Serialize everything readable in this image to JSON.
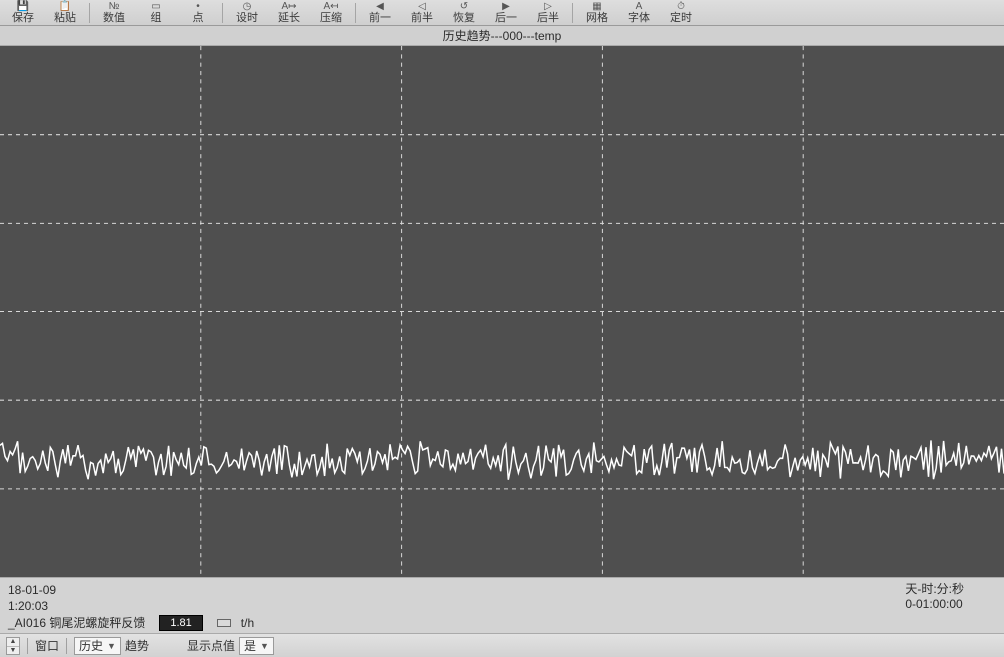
{
  "toolbar": [
    {
      "name": "save-button",
      "label": "保存",
      "glyph": "💾"
    },
    {
      "name": "paste-button",
      "label": "粘贴",
      "glyph": "📋"
    },
    {
      "name": "value-button",
      "label": "数值",
      "glyph": "№"
    },
    {
      "name": "group-button",
      "label": "组",
      "glyph": "▭"
    },
    {
      "name": "point-button",
      "label": "点",
      "glyph": "•"
    },
    {
      "name": "set-time-button",
      "label": "设时",
      "glyph": "◷"
    },
    {
      "name": "extend-button",
      "label": "延长",
      "glyph": "A↦"
    },
    {
      "name": "compress-button",
      "label": "压缩",
      "glyph": "A↤"
    },
    {
      "name": "prev-one-button",
      "label": "前一",
      "glyph": "◀"
    },
    {
      "name": "prev-half-button",
      "label": "前半",
      "glyph": "◁"
    },
    {
      "name": "restore-button",
      "label": "恢复",
      "glyph": "↺"
    },
    {
      "name": "next-one-button",
      "label": "后一",
      "glyph": "▶"
    },
    {
      "name": "next-half-button",
      "label": "后半",
      "glyph": "▷"
    },
    {
      "name": "grid-button",
      "label": "网格",
      "glyph": "▦"
    },
    {
      "name": "font-button",
      "label": "字体",
      "glyph": "A"
    },
    {
      "name": "timer-button",
      "label": "定时",
      "glyph": "⏱"
    }
  ],
  "toolbar_seps_after": [
    1,
    4,
    7,
    12
  ],
  "chart": {
    "title": "历史趋势---000---temp",
    "background_color": "#4f4f4f",
    "grid_color": "#d8d8d8",
    "grid_dash": "4 4",
    "xlim": [
      0,
      100
    ],
    "ylim": [
      0,
      100
    ],
    "x_gridlines": [
      20,
      40,
      60,
      80
    ],
    "y_gridlines": [
      16.6,
      33.3,
      50.0,
      66.6,
      83.3
    ],
    "series": {
      "name": "AI016",
      "color": "#ffffff",
      "width": 1.5,
      "baseline_y": 22,
      "noise_amplitude": 3,
      "points": 400
    }
  },
  "info": {
    "date": "18-01-09",
    "time": "1:20:03",
    "tag": "_AI016 铜尾泥螺旋秤反馈",
    "value": "1.81",
    "unit": "t/h",
    "swatch_color": "#d9d9d9",
    "time_label": "天-时:分:秒",
    "time_span": "0-01:00:00"
  },
  "controls": {
    "window_label": "窗口",
    "history_label": "历史",
    "trend_label": "趋势",
    "show_value_label": "显示点值",
    "show_value_selected": "是"
  }
}
